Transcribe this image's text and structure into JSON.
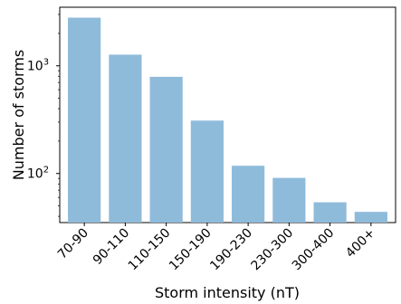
{
  "chart_data": {
    "type": "bar",
    "categories": [
      "70-90",
      "90-110",
      "110-150",
      "150-190",
      "190-230",
      "230-300",
      "300-400",
      "400+"
    ],
    "values": [
      2800,
      1270,
      790,
      310,
      118,
      91,
      54,
      44
    ],
    "xlabel": "Storm intensity (nT)",
    "ylabel": "Number of storms",
    "yscale": "log",
    "ylim": [
      35,
      3500
    ],
    "y_tick_labels": [
      {
        "value": 100,
        "base": "10",
        "exp": "2"
      },
      {
        "value": 1000,
        "base": "10",
        "exp": "3"
      }
    ],
    "bar_color": "#8fbbdb",
    "grid": false,
    "legend": "none"
  }
}
